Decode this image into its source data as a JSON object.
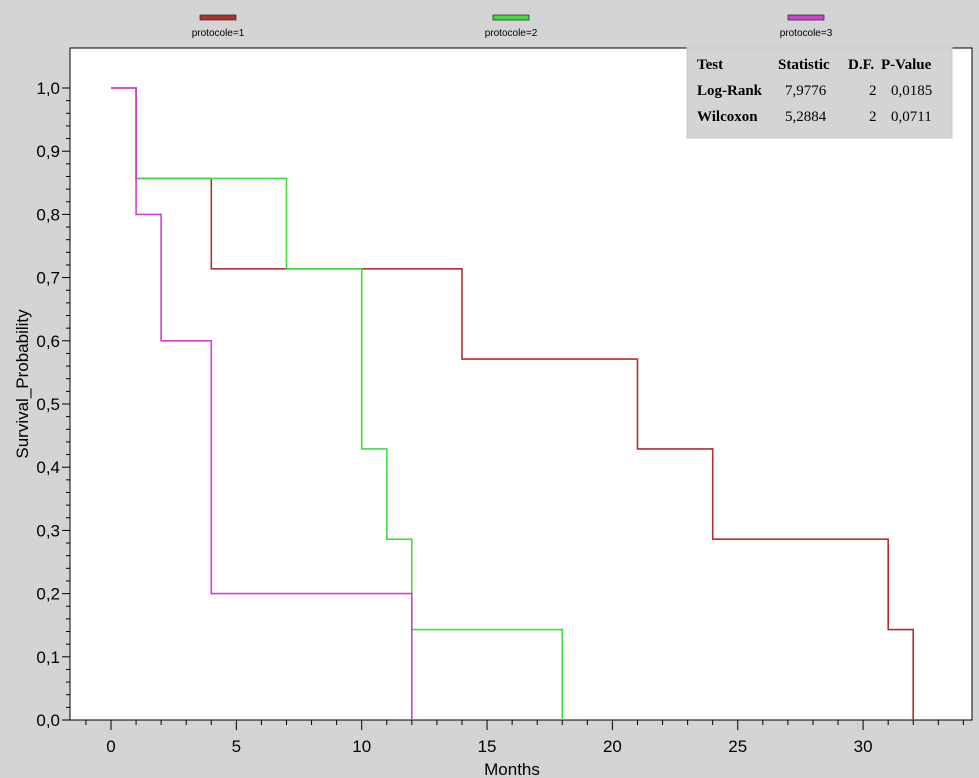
{
  "chart_data": {
    "type": "line",
    "step": true,
    "xlabel": "Months",
    "ylabel": "Survival_Probability",
    "xlim": [
      -2.5,
      35
    ],
    "ylim": [
      0,
      1.05
    ],
    "xticks": [
      0,
      5,
      10,
      15,
      20,
      25,
      30
    ],
    "xtick_labels": [
      "0",
      "5",
      "10",
      "15",
      "20",
      "25",
      "30"
    ],
    "yticks": [
      0,
      0.1,
      0.2,
      0.3,
      0.4,
      0.5,
      0.6,
      0.7,
      0.8,
      0.9,
      1.0
    ],
    "ytick_labels": [
      "0,0",
      "0,1",
      "0,2",
      "0,3",
      "0,4",
      "0,5",
      "0,6",
      "0,7",
      "0,8",
      "0,9",
      "1,0"
    ],
    "legend_position": "top",
    "grid": false,
    "series": [
      {
        "name": "protocole=1",
        "color": "#b03030",
        "points": [
          [
            0,
            1.0
          ],
          [
            1,
            1.0
          ],
          [
            1,
            0.857
          ],
          [
            4,
            0.857
          ],
          [
            4,
            0.714
          ],
          [
            14,
            0.714
          ],
          [
            14,
            0.571
          ],
          [
            21,
            0.571
          ],
          [
            21,
            0.429
          ],
          [
            24,
            0.429
          ],
          [
            24,
            0.286
          ],
          [
            31,
            0.286
          ],
          [
            31,
            0.143
          ],
          [
            32,
            0.143
          ],
          [
            32,
            0.0
          ]
        ]
      },
      {
        "name": "protocole=2",
        "color": "#40dd40",
        "points": [
          [
            1,
            0.857
          ],
          [
            7,
            0.857
          ],
          [
            7,
            0.714
          ],
          [
            10,
            0.714
          ],
          [
            10,
            0.429
          ],
          [
            11,
            0.429
          ],
          [
            11,
            0.286
          ],
          [
            12,
            0.286
          ],
          [
            12,
            0.143
          ],
          [
            18,
            0.143
          ],
          [
            18,
            0.0
          ]
        ]
      },
      {
        "name": "protocole=3",
        "color": "#d040d0",
        "points": [
          [
            0,
            1.0
          ],
          [
            1,
            1.0
          ],
          [
            1,
            0.8
          ],
          [
            2,
            0.8
          ],
          [
            2,
            0.6
          ],
          [
            4,
            0.6
          ],
          [
            4,
            0.2
          ],
          [
            12,
            0.2
          ],
          [
            12,
            0.0
          ]
        ]
      }
    ]
  },
  "stats_table": {
    "headers": [
      "Test",
      "Statistic",
      "D.F.",
      "P-Value"
    ],
    "rows": [
      [
        "Log-Rank",
        "7,9776",
        "2",
        "0,0185"
      ],
      [
        "Wilcoxon",
        "5,2884",
        "2",
        "0,0711"
      ]
    ]
  }
}
